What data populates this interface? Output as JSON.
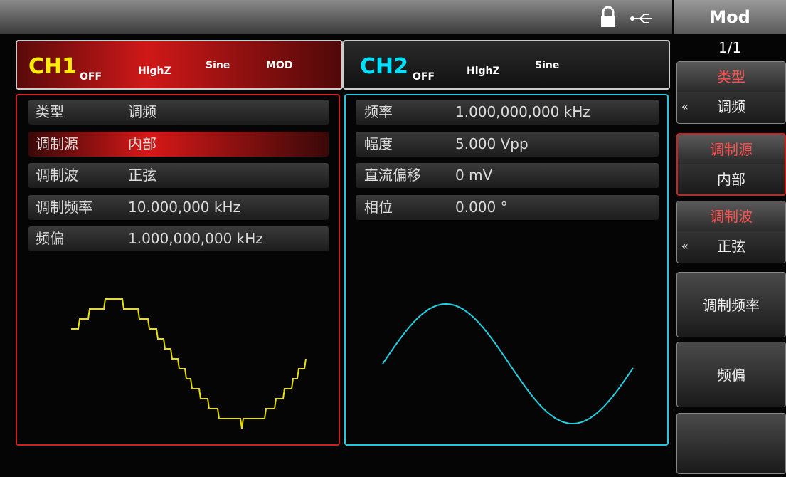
{
  "status": {
    "menu": "Mod",
    "page": "1/1"
  },
  "ch1": {
    "name": "CH1",
    "state": "OFF",
    "load": "HighZ",
    "wave": "Sine",
    "mode": "MOD",
    "rows": [
      {
        "label": "类型",
        "value": "调频"
      },
      {
        "label": "调制源",
        "value": "内部"
      },
      {
        "label": "调制波",
        "value": "正弦"
      },
      {
        "label": "调制频率",
        "value": "10.000,000 kHz"
      },
      {
        "label": "频偏",
        "value": "1.000,000,000 kHz"
      }
    ]
  },
  "ch2": {
    "name": "CH2",
    "state": "OFF",
    "load": "HighZ",
    "wave": "Sine",
    "rows": [
      {
        "label": "频率",
        "value": "1.000,000,000 kHz"
      },
      {
        "label": "幅度",
        "value": "5.000 Vpp"
      },
      {
        "label": "直流偏移",
        "value": "0 mV"
      },
      {
        "label": "相位",
        "value": "0.000 °"
      }
    ]
  },
  "softkeys": [
    {
      "label": "类型",
      "value": "调频"
    },
    {
      "label": "调制源",
      "value": "内部"
    },
    {
      "label": "调制波",
      "value": "正弦"
    },
    {
      "label": "调制频率"
    },
    {
      "label": "频偏"
    }
  ]
}
